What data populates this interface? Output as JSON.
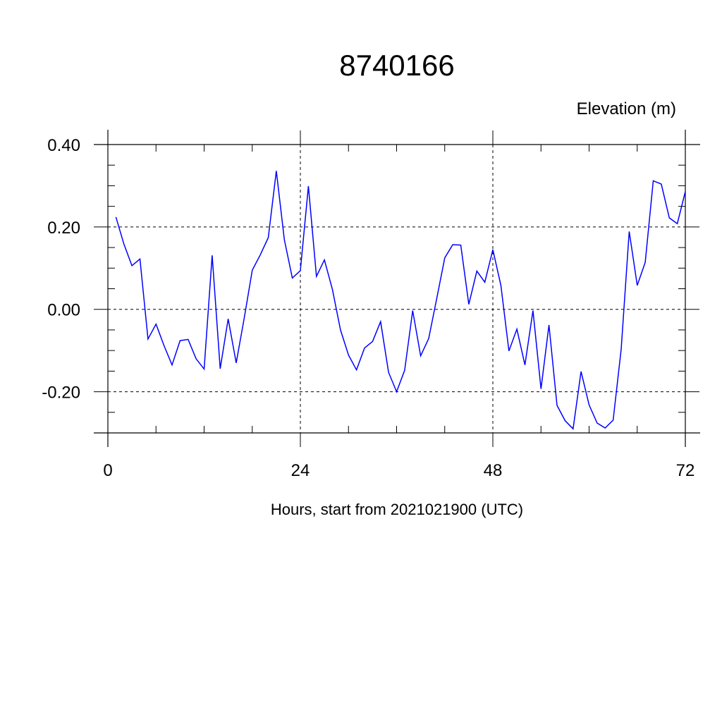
{
  "chart_data": {
    "type": "line",
    "title": "8740166",
    "ylabel": "Elevation (m)",
    "xlabel": "Hours, start from 2021021900 (UTC)",
    "xlim": [
      0,
      72
    ],
    "ylim": [
      -0.3,
      0.4
    ],
    "x_ticks": [
      0,
      24,
      48,
      72
    ],
    "x_tick_labels": [
      "0",
      "24",
      "48",
      "72"
    ],
    "y_ticks": [
      -0.2,
      0.0,
      0.2,
      0.4
    ],
    "y_tick_labels": [
      "-0.20",
      "0.00",
      "0.20",
      "0.40"
    ],
    "grid": true,
    "grid_style": "dashed",
    "colors": {
      "line": "#0000ff",
      "axis": "#000000",
      "grid": "#000000"
    },
    "series": [
      {
        "x": [
          1,
          2,
          3,
          4,
          5,
          6,
          7,
          8,
          9,
          10,
          11,
          12,
          13,
          14,
          15,
          16,
          17,
          18,
          19,
          20,
          21,
          22,
          23,
          24,
          25,
          26,
          27,
          28,
          29,
          30,
          31,
          32,
          33,
          34,
          35,
          36,
          37,
          38,
          39,
          40,
          41,
          42,
          43,
          44,
          45,
          46,
          47,
          48,
          49,
          50,
          51,
          52,
          53,
          54,
          55,
          56,
          57,
          58,
          59,
          60,
          61,
          62,
          63,
          64,
          65,
          66,
          67,
          68,
          69,
          70,
          71,
          72
        ],
        "values": [
          0.224,
          0.158,
          0.106,
          0.122,
          -0.072,
          -0.036,
          -0.088,
          -0.135,
          -0.076,
          -0.073,
          -0.12,
          -0.145,
          0.131,
          -0.144,
          -0.023,
          -0.13,
          -0.021,
          0.095,
          0.132,
          0.174,
          0.336,
          0.169,
          0.076,
          0.094,
          0.299,
          0.08,
          0.12,
          0.048,
          -0.05,
          -0.111,
          -0.147,
          -0.094,
          -0.078,
          -0.03,
          -0.153,
          -0.2,
          -0.148,
          -0.003,
          -0.113,
          -0.071,
          0.026,
          0.125,
          0.157,
          0.156,
          0.012,
          0.093,
          0.066,
          0.145,
          0.058,
          -0.101,
          -0.048,
          -0.135,
          -0.003,
          -0.193,
          -0.038,
          -0.233,
          -0.27,
          -0.29,
          -0.151,
          -0.232,
          -0.276,
          -0.288,
          -0.269,
          -0.097,
          0.189,
          0.058,
          0.114,
          0.312,
          0.304,
          0.222,
          0.208,
          0.286
        ]
      }
    ]
  }
}
